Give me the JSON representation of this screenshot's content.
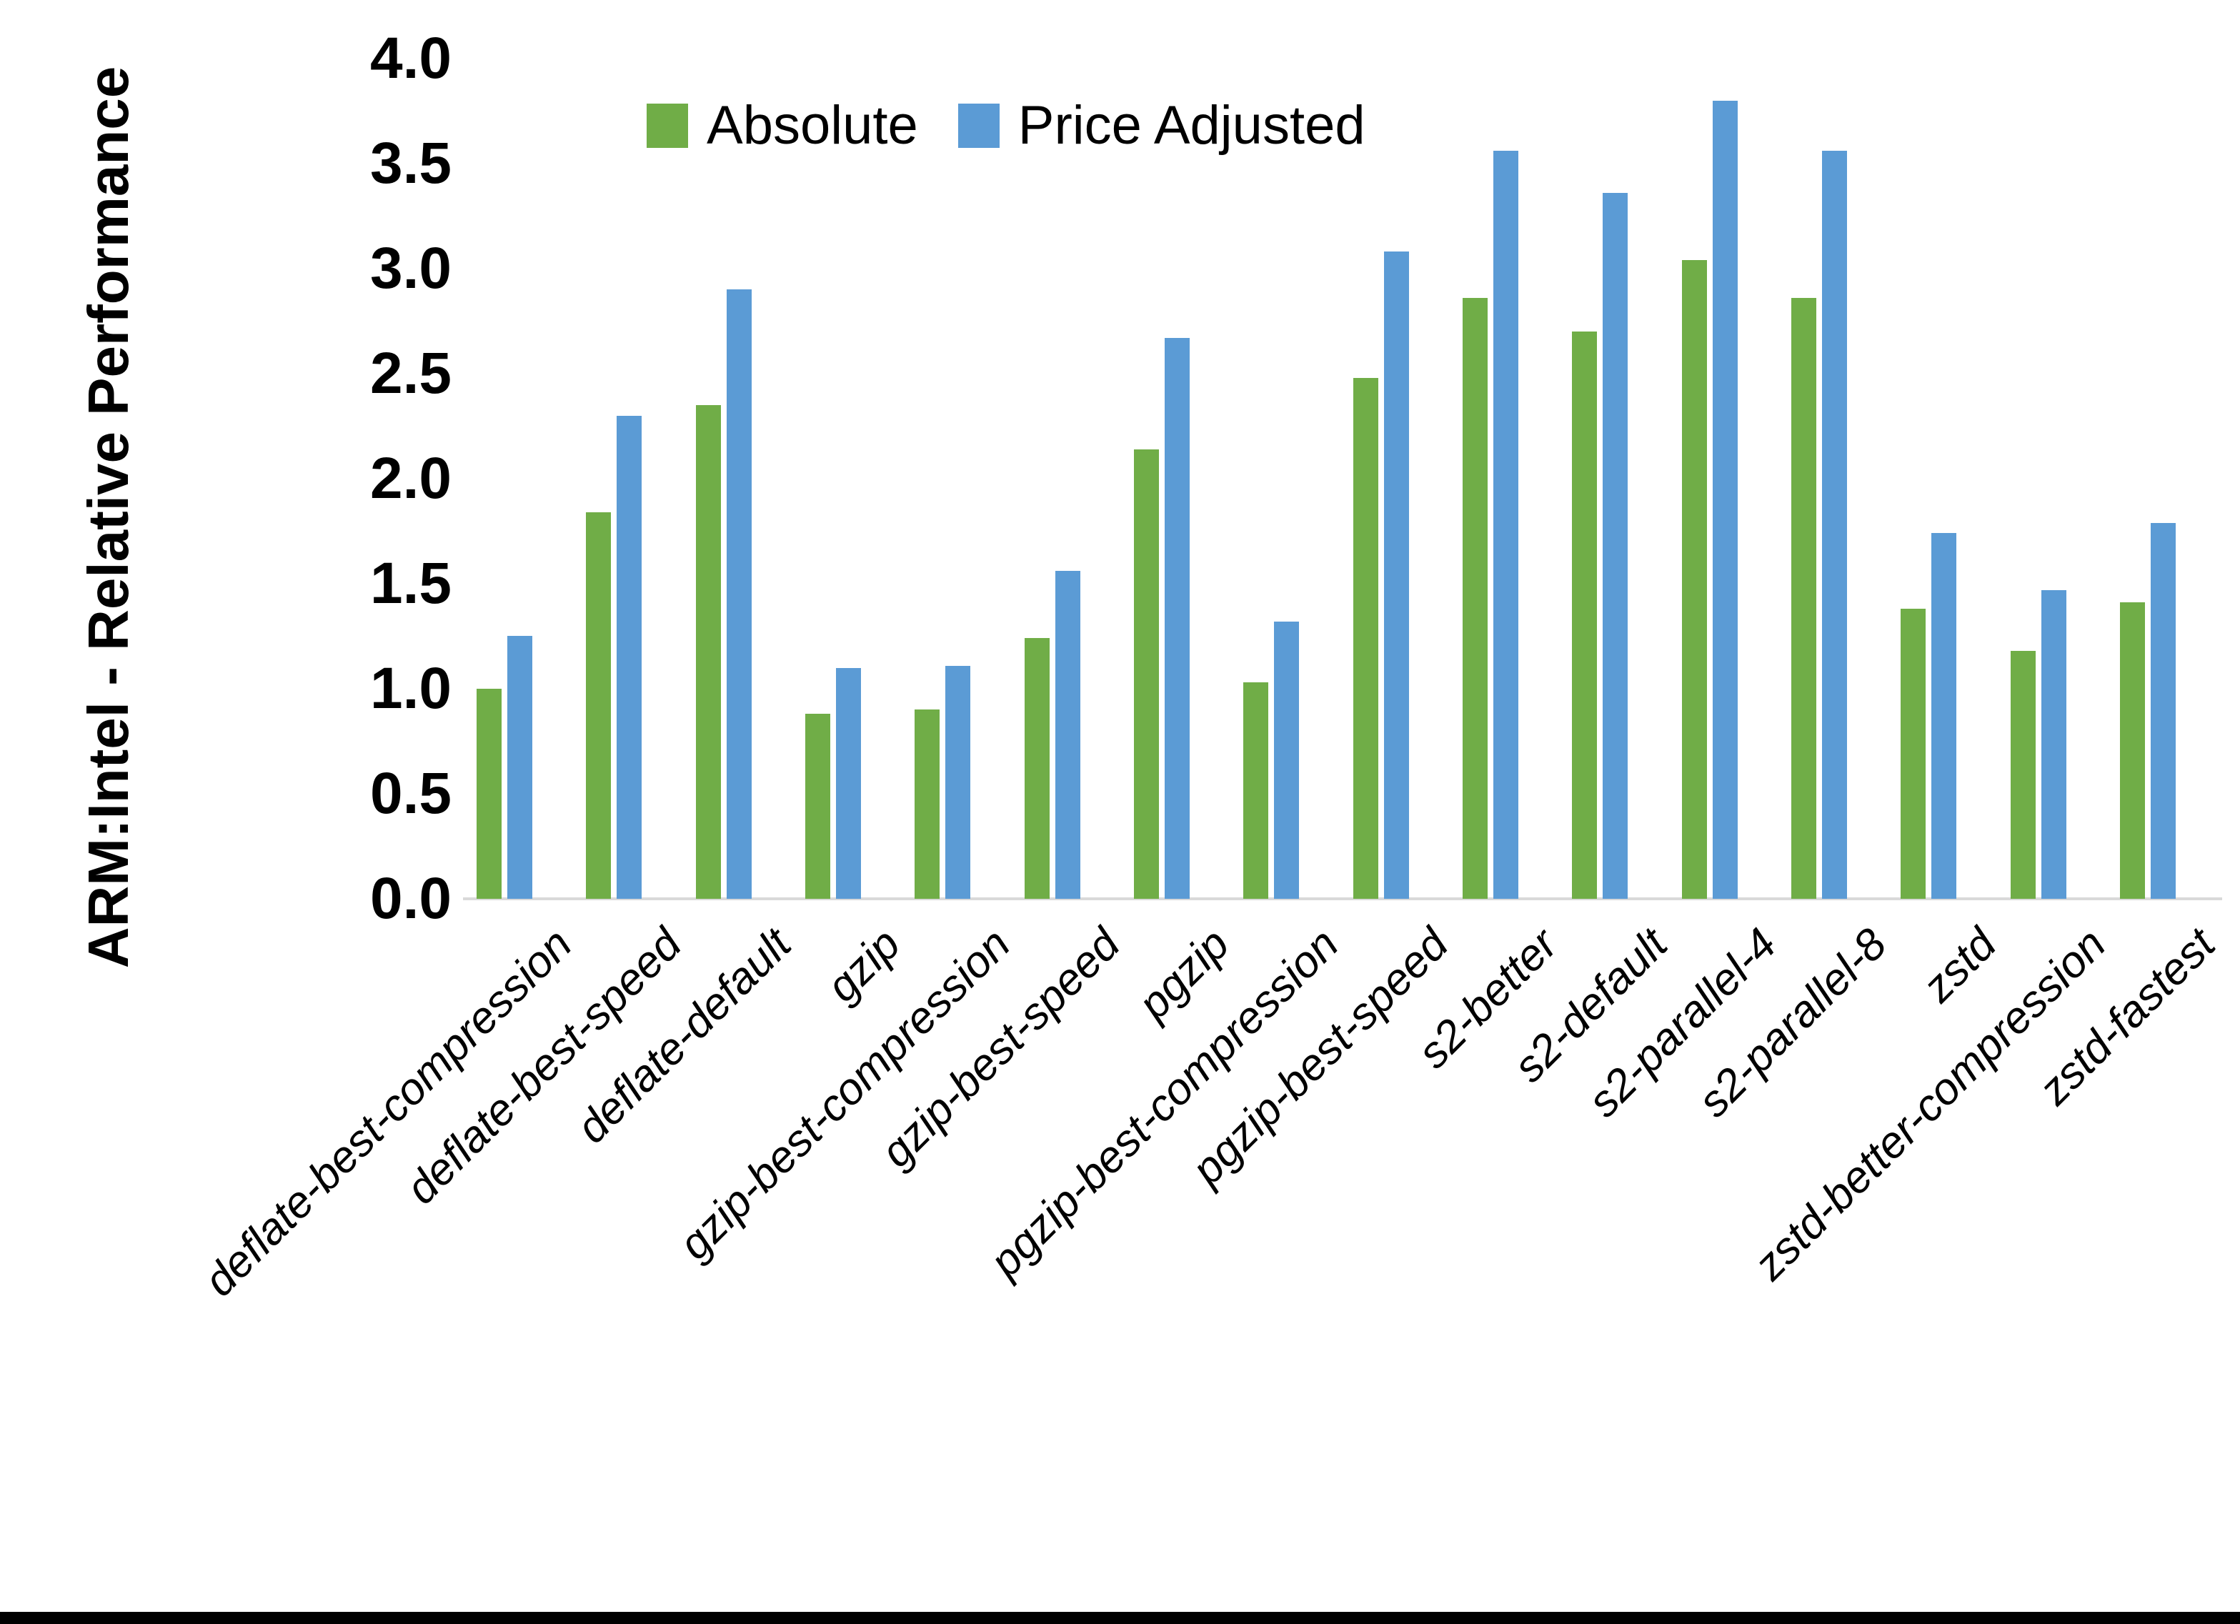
{
  "chart_data": {
    "type": "bar",
    "title": "",
    "xlabel": "",
    "ylabel": "ARM:Intel - Relative Performance",
    "ylim": [
      0.0,
      4.0
    ],
    "ytick_step": 0.5,
    "grid": false,
    "legend_position": "top-center-inside",
    "categories": [
      "deflate-best-compression",
      "deflate-best-speed",
      "deflate-default",
      "gzip",
      "gzip-best-compression",
      "gzip-best-speed",
      "pgzip",
      "pgzip-best-compression",
      "pgzip-best-speed",
      "s2-better",
      "s2-default",
      "s2-parallel-4",
      "s2-parallel-8",
      "zstd",
      "zstd-better-compression",
      "zstd-fastest"
    ],
    "series": [
      {
        "name": "Absolute",
        "color": "#70AD47",
        "values": [
          1.0,
          1.84,
          2.35,
          0.88,
          0.9,
          1.24,
          2.14,
          1.03,
          2.48,
          2.86,
          2.7,
          3.04,
          2.86,
          1.38,
          1.18,
          1.41
        ]
      },
      {
        "name": "Price Adjusted",
        "color": "#5B9BD5",
        "values": [
          1.25,
          2.3,
          2.9,
          1.1,
          1.11,
          1.56,
          2.67,
          1.32,
          3.08,
          3.56,
          3.36,
          3.8,
          3.56,
          1.74,
          1.47,
          1.79
        ]
      }
    ]
  },
  "colors": {
    "background": "#ffffff",
    "axis_line": "#d9d9d9",
    "text": "#000000",
    "bottom_strip": "#000000"
  }
}
